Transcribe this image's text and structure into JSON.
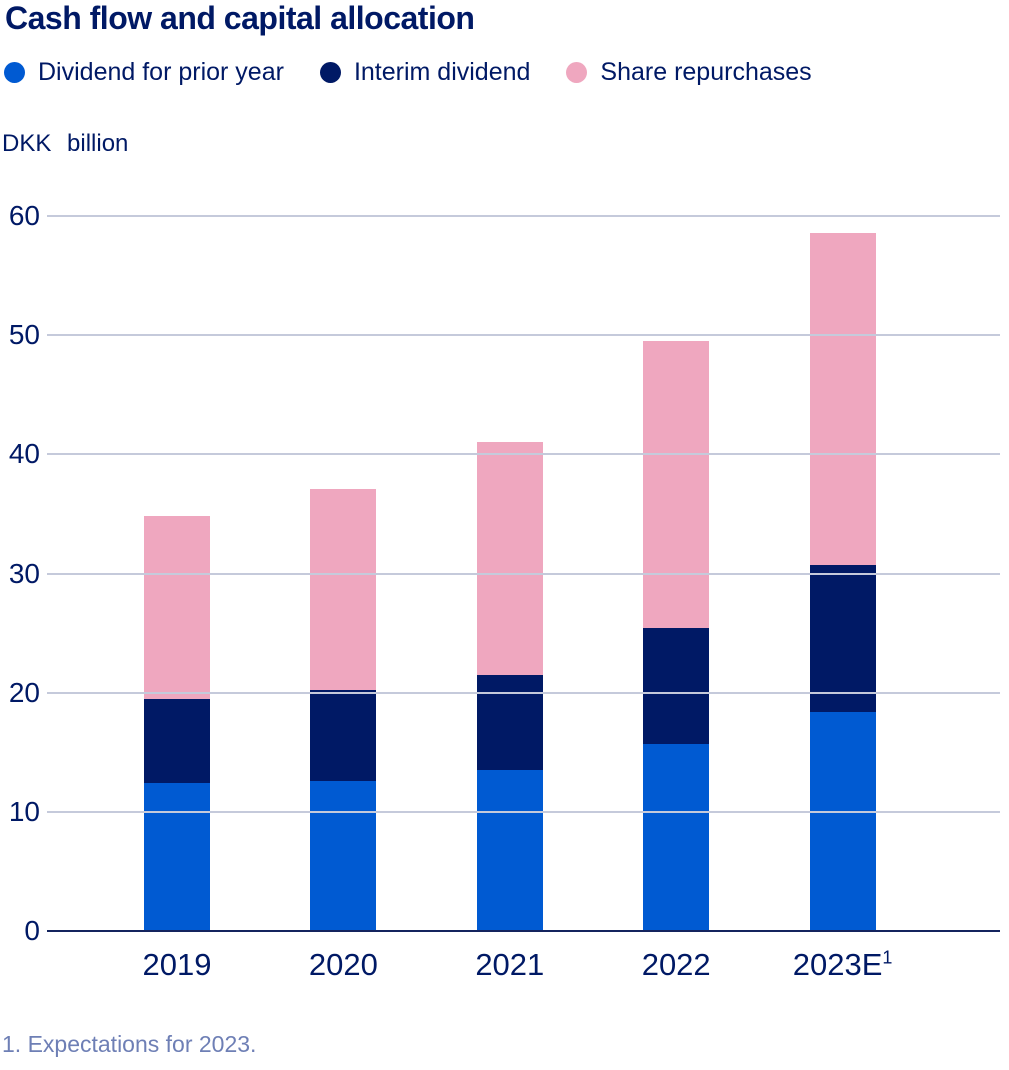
{
  "title": "Cash flow and capital allocation",
  "footnote": "1. Expectations for 2023.",
  "legend": [
    {
      "label": "Dividend for prior year",
      "color": "#005AD2"
    },
    {
      "label": "Interim dividend",
      "color": "#001965"
    },
    {
      "label": "Share repurchases",
      "color": "#EFA7BF"
    }
  ],
  "chart_data": {
    "type": "bar",
    "stacked": true,
    "title": "Cash flow and capital allocation",
    "ylabel": "DKK billion",
    "categories": [
      "2019",
      "2020",
      "2021",
      "2022",
      "2023E"
    ],
    "category_footnote_markers": [
      "",
      "",
      "",
      "",
      "1"
    ],
    "series": [
      {
        "name": "Dividend for prior year",
        "color": "#005AD2",
        "values": [
          12.4,
          12.6,
          13.5,
          15.7,
          18.4
        ]
      },
      {
        "name": "Interim dividend",
        "color": "#001965",
        "values": [
          7.1,
          7.6,
          8.0,
          9.7,
          12.3
        ]
      },
      {
        "name": "Share repurchases",
        "color": "#EFA7BF",
        "values": [
          15.3,
          16.9,
          19.5,
          24.1,
          27.9
        ]
      }
    ],
    "stacked_totals": [
      34.8,
      37.1,
      41.0,
      49.5,
      58.6
    ],
    "ylim": [
      0,
      60
    ],
    "yticks": [
      0,
      10,
      20,
      30,
      40,
      50,
      60
    ],
    "grid": true,
    "legend_position": "top",
    "axis_colors": {
      "gridline": "#C5CADB",
      "zero_axis": "#14245E"
    }
  }
}
